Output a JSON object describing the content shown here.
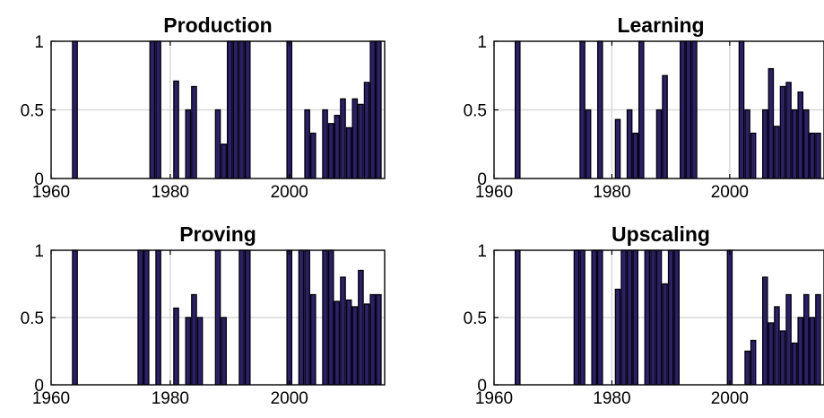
{
  "chart_data": [
    {
      "type": "bar",
      "title": "Production",
      "xlim": [
        1960,
        2016
      ],
      "ylim": [
        0,
        1
      ],
      "xticks": [
        1960,
        1980,
        2000
      ],
      "yticks": [
        0,
        0.5,
        1
      ],
      "grid": true,
      "bar_color": "#2b1f6e",
      "x": [
        1964,
        1977,
        1978,
        1981,
        1983,
        1984,
        1988,
        1989,
        1990,
        1991,
        1992,
        1993,
        2000,
        2003,
        2004,
        2006,
        2007,
        2008,
        2009,
        2010,
        2011,
        2012,
        2013,
        2014,
        2015
      ],
      "values": [
        1,
        1,
        1,
        0.71,
        0.5,
        0.67,
        0.5,
        0.25,
        1,
        1,
        1,
        1,
        1,
        0.5,
        0.33,
        0.5,
        0.4,
        0.46,
        0.58,
        0.37,
        0.58,
        0.54,
        0.7,
        1,
        1
      ]
    },
    {
      "type": "bar",
      "title": "Learning",
      "xlim": [
        1960,
        2016
      ],
      "ylim": [
        0,
        1
      ],
      "xticks": [
        1960,
        1980,
        2000
      ],
      "yticks": [
        0,
        0.5,
        1
      ],
      "grid": true,
      "bar_color": "#2b1f6e",
      "x": [
        1964,
        1975,
        1976,
        1978,
        1981,
        1983,
        1984,
        1985,
        1988,
        1989,
        1992,
        1993,
        1994,
        2002,
        2003,
        2004,
        2006,
        2007,
        2008,
        2009,
        2010,
        2011,
        2012,
        2013,
        2014,
        2015
      ],
      "values": [
        1,
        1,
        0.5,
        1,
        0.43,
        0.5,
        0.33,
        1,
        0.5,
        0.75,
        1,
        1,
        1,
        1,
        0.5,
        0.33,
        0.5,
        0.8,
        0.38,
        0.67,
        0.7,
        0.5,
        0.63,
        0.5,
        0.33,
        0.33
      ]
    },
    {
      "type": "bar",
      "title": "Proving",
      "xlim": [
        1960,
        2016
      ],
      "ylim": [
        0,
        1
      ],
      "xticks": [
        1960,
        1980,
        2000
      ],
      "yticks": [
        0,
        0.5,
        1
      ],
      "grid": true,
      "bar_color": "#2b1f6e",
      "x": [
        1964,
        1975,
        1976,
        1978,
        1981,
        1983,
        1984,
        1985,
        1988,
        1989,
        1992,
        1993,
        2000,
        2002,
        2003,
        2004,
        2006,
        2007,
        2008,
        2009,
        2010,
        2011,
        2012,
        2013,
        2014,
        2015
      ],
      "values": [
        1,
        1,
        1,
        1,
        0.57,
        0.5,
        0.67,
        0.5,
        1,
        0.5,
        1,
        1,
        1,
        1,
        1,
        0.67,
        1,
        1,
        0.62,
        0.8,
        0.63,
        0.58,
        0.85,
        0.6,
        0.67,
        0.67
      ]
    },
    {
      "type": "bar",
      "title": "Upscaling",
      "xlim": [
        1960,
        2016
      ],
      "ylim": [
        0,
        1
      ],
      "xticks": [
        1960,
        1980,
        2000
      ],
      "yticks": [
        0,
        0.5,
        1
      ],
      "grid": true,
      "bar_color": "#2b1f6e",
      "x": [
        1964,
        1974,
        1975,
        1977,
        1978,
        1981,
        1982,
        1983,
        1984,
        1986,
        1987,
        1988,
        1989,
        1990,
        1991,
        2000,
        2003,
        2004,
        2006,
        2007,
        2008,
        2009,
        2010,
        2011,
        2012,
        2013,
        2014,
        2015
      ],
      "values": [
        1,
        1,
        1,
        1,
        1,
        0.71,
        1,
        1,
        1,
        1,
        1,
        1,
        0.75,
        1,
        1,
        1,
        0.25,
        0.33,
        0.8,
        0.46,
        0.58,
        0.4,
        0.67,
        0.31,
        0.5,
        0.67,
        0.5,
        0.67
      ]
    }
  ]
}
